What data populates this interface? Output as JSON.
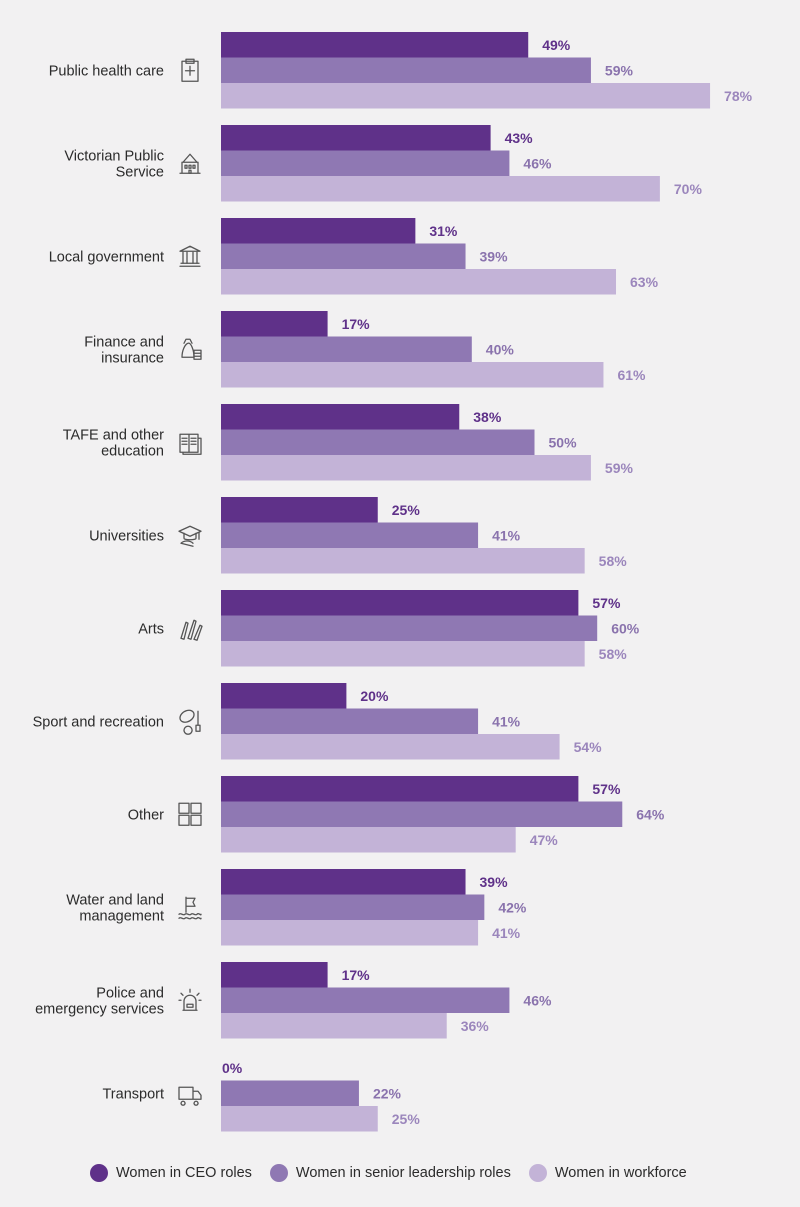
{
  "colors": {
    "ceo": "#5f3189",
    "senior": "#8f78b3",
    "workforce": "#c3b3d7",
    "ceo_text": "#5f3189",
    "senior_text": "#8a73ad",
    "workforce_text": "#9b86bc"
  },
  "legend": {
    "ceo": "Women in CEO roles",
    "senior": "Women in senior leadership roles",
    "workforce": "Women in workforce"
  },
  "chart_data": {
    "type": "bar",
    "orientation": "horizontal",
    "grid": false,
    "legend_position": "bottom",
    "xlim": [
      0,
      100
    ],
    "categories": [
      {
        "label": "Public health care",
        "icon": "clipboard-medical-icon"
      },
      {
        "label": "Victorian Public Service",
        "icon": "government-building-icon"
      },
      {
        "label": "Local government",
        "icon": "columns-building-icon"
      },
      {
        "label": "Finance and insurance",
        "icon": "money-bag-coins-icon"
      },
      {
        "label": "TAFE and other education",
        "icon": "books-icon"
      },
      {
        "label": "Universities",
        "icon": "graduation-cap-icon"
      },
      {
        "label": "Arts",
        "icon": "brushes-icon"
      },
      {
        "label": "Sport and recreation",
        "icon": "sports-balls-icon"
      },
      {
        "label": "Other",
        "icon": "grid-squares-icon"
      },
      {
        "label": "Water and land management",
        "icon": "flag-water-icon"
      },
      {
        "label": "Police and emergency services",
        "icon": "siren-icon"
      },
      {
        "label": "Transport",
        "icon": "truck-icon"
      }
    ],
    "series": [
      {
        "name": "Women in CEO roles",
        "key": "ceo",
        "values": [
          49,
          43,
          31,
          17,
          38,
          25,
          57,
          20,
          57,
          39,
          17,
          0
        ]
      },
      {
        "name": "Women in senior leadership roles",
        "key": "senior",
        "values": [
          59,
          46,
          39,
          40,
          50,
          41,
          60,
          41,
          64,
          42,
          46,
          22
        ]
      },
      {
        "name": "Women in workforce",
        "key": "workforce",
        "values": [
          78,
          70,
          63,
          61,
          59,
          58,
          58,
          54,
          47,
          41,
          36,
          25
        ]
      }
    ],
    "value_suffix": "%"
  }
}
